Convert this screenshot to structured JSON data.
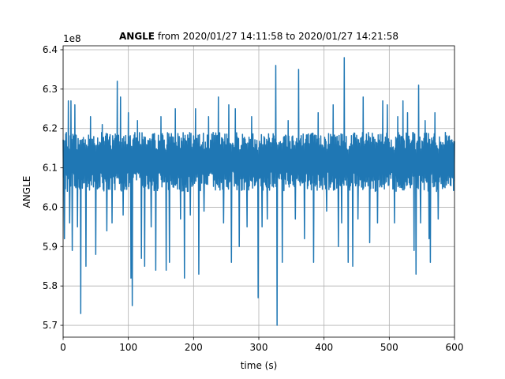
{
  "chart_data": {
    "type": "line",
    "title_bold": "ANGLE",
    "title_rest": " from 2020/01/27 14:11:58 to 2020/01/27 14:21:58",
    "xlabel": "time (s)",
    "ylabel": "ANGLE",
    "offset_label": "1e8",
    "xlim": [
      0,
      600
    ],
    "ylim": [
      5.67,
      6.41
    ],
    "x_ticks": [
      0,
      100,
      200,
      300,
      400,
      500,
      600
    ],
    "y_ticks": [
      5.7,
      5.8,
      5.9,
      6.0,
      6.1,
      6.2,
      6.3,
      6.4
    ],
    "x_tick_labels": [
      "0",
      "100",
      "200",
      "300",
      "400",
      "500",
      "600"
    ],
    "y_tick_labels": [
      "5.7",
      "5.8",
      "5.9",
      "6.0",
      "6.1",
      "6.2",
      "6.3",
      "6.4"
    ],
    "grid": true,
    "line_color": "#1f77b4",
    "series_band": {
      "center": 6.12,
      "upper": 6.19,
      "lower": 6.04
    },
    "spikes": [
      {
        "x": 2,
        "y": 5.92
      },
      {
        "x": 8,
        "y": 6.27
      },
      {
        "x": 10,
        "y": 5.96
      },
      {
        "x": 12,
        "y": 6.27
      },
      {
        "x": 14,
        "y": 5.89
      },
      {
        "x": 18,
        "y": 6.26
      },
      {
        "x": 22,
        "y": 5.95
      },
      {
        "x": 27,
        "y": 5.73
      },
      {
        "x": 35,
        "y": 5.85
      },
      {
        "x": 42,
        "y": 6.23
      },
      {
        "x": 50,
        "y": 5.88
      },
      {
        "x": 60,
        "y": 6.21
      },
      {
        "x": 67,
        "y": 5.94
      },
      {
        "x": 75,
        "y": 5.96
      },
      {
        "x": 83,
        "y": 6.32
      },
      {
        "x": 88,
        "y": 6.28
      },
      {
        "x": 92,
        "y": 5.98
      },
      {
        "x": 100,
        "y": 6.24
      },
      {
        "x": 104,
        "y": 5.82
      },
      {
        "x": 106,
        "y": 5.75
      },
      {
        "x": 114,
        "y": 6.22
      },
      {
        "x": 120,
        "y": 5.87
      },
      {
        "x": 125,
        "y": 5.85
      },
      {
        "x": 135,
        "y": 5.95
      },
      {
        "x": 142,
        "y": 5.84
      },
      {
        "x": 150,
        "y": 6.23
      },
      {
        "x": 158,
        "y": 5.84
      },
      {
        "x": 163,
        "y": 5.86
      },
      {
        "x": 172,
        "y": 6.25
      },
      {
        "x": 180,
        "y": 5.97
      },
      {
        "x": 186,
        "y": 5.82
      },
      {
        "x": 195,
        "y": 5.98
      },
      {
        "x": 203,
        "y": 6.25
      },
      {
        "x": 208,
        "y": 5.83
      },
      {
        "x": 216,
        "y": 5.99
      },
      {
        "x": 223,
        "y": 6.23
      },
      {
        "x": 238,
        "y": 6.28
      },
      {
        "x": 246,
        "y": 5.96
      },
      {
        "x": 254,
        "y": 6.26
      },
      {
        "x": 258,
        "y": 5.86
      },
      {
        "x": 264,
        "y": 6.25
      },
      {
        "x": 270,
        "y": 5.9
      },
      {
        "x": 282,
        "y": 5.95
      },
      {
        "x": 289,
        "y": 6.23
      },
      {
        "x": 299,
        "y": 5.77
      },
      {
        "x": 305,
        "y": 5.95
      },
      {
        "x": 313,
        "y": 5.97
      },
      {
        "x": 326,
        "y": 6.36
      },
      {
        "x": 328,
        "y": 5.7
      },
      {
        "x": 336,
        "y": 5.86
      },
      {
        "x": 345,
        "y": 6.22
      },
      {
        "x": 356,
        "y": 5.97
      },
      {
        "x": 361,
        "y": 6.35
      },
      {
        "x": 370,
        "y": 5.92
      },
      {
        "x": 384,
        "y": 5.86
      },
      {
        "x": 391,
        "y": 6.24
      },
      {
        "x": 404,
        "y": 5.99
      },
      {
        "x": 414,
        "y": 6.26
      },
      {
        "x": 422,
        "y": 5.9
      },
      {
        "x": 427,
        "y": 5.96
      },
      {
        "x": 431,
        "y": 6.38
      },
      {
        "x": 437,
        "y": 5.86
      },
      {
        "x": 444,
        "y": 5.85
      },
      {
        "x": 452,
        "y": 5.97
      },
      {
        "x": 460,
        "y": 6.28
      },
      {
        "x": 470,
        "y": 5.91
      },
      {
        "x": 482,
        "y": 5.96
      },
      {
        "x": 490,
        "y": 6.27
      },
      {
        "x": 497,
        "y": 6.26
      },
      {
        "x": 508,
        "y": 5.96
      },
      {
        "x": 513,
        "y": 6.23
      },
      {
        "x": 521,
        "y": 6.27
      },
      {
        "x": 528,
        "y": 6.24
      },
      {
        "x": 538,
        "y": 5.89
      },
      {
        "x": 541,
        "y": 5.83
      },
      {
        "x": 545,
        "y": 6.31
      },
      {
        "x": 548,
        "y": 5.96
      },
      {
        "x": 555,
        "y": 6.22
      },
      {
        "x": 561,
        "y": 5.92
      },
      {
        "x": 563,
        "y": 5.86
      },
      {
        "x": 570,
        "y": 6.24
      },
      {
        "x": 575,
        "y": 5.97
      }
    ]
  }
}
